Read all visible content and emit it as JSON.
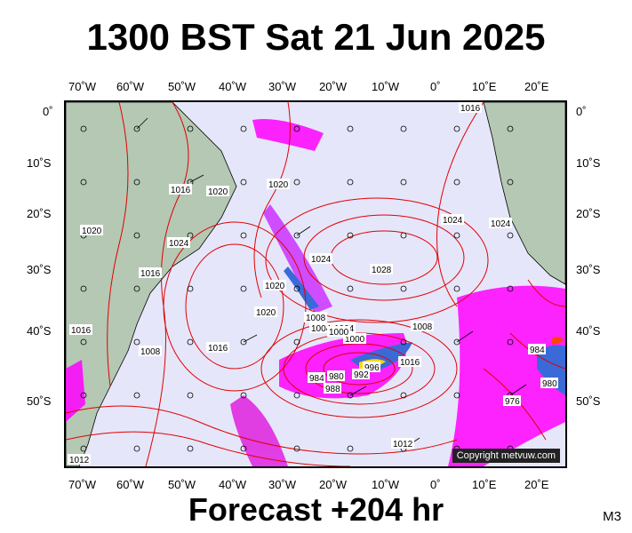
{
  "header": {
    "title": "1300 BST Sat 21 Jun 2025"
  },
  "footer": {
    "forecast": "Forecast +204 hr",
    "model": "M3"
  },
  "map": {
    "copyright": "Copyright metvuw.com",
    "lon_labels": [
      "70˚W",
      "60˚W",
      "50˚W",
      "40˚W",
      "30˚W",
      "20˚W",
      "10˚W",
      "0˚",
      "10˚E",
      "20˚E"
    ],
    "lat_labels": [
      "0˚",
      "10˚S",
      "20˚S",
      "30˚S",
      "40˚S",
      "50˚S"
    ],
    "pressure_labels": [
      "1016",
      "1020",
      "1016",
      "1020",
      "1024",
      "1016",
      "1028",
      "1024",
      "1024",
      "1020",
      "1016",
      "1020",
      "1024",
      "1020",
      "1016",
      "1008",
      "1004",
      "1000",
      "1016",
      "1008",
      "1016",
      "1008",
      "1004",
      "1000",
      "996",
      "992",
      "988",
      "984",
      "980",
      "976",
      "984",
      "980",
      "1012",
      "1012"
    ],
    "colors": {
      "ocean": "#e6e6fa",
      "land": "#b4c8b4",
      "isobar": "#e00000",
      "precip": "#ff00ff",
      "barb": "#000000"
    }
  }
}
